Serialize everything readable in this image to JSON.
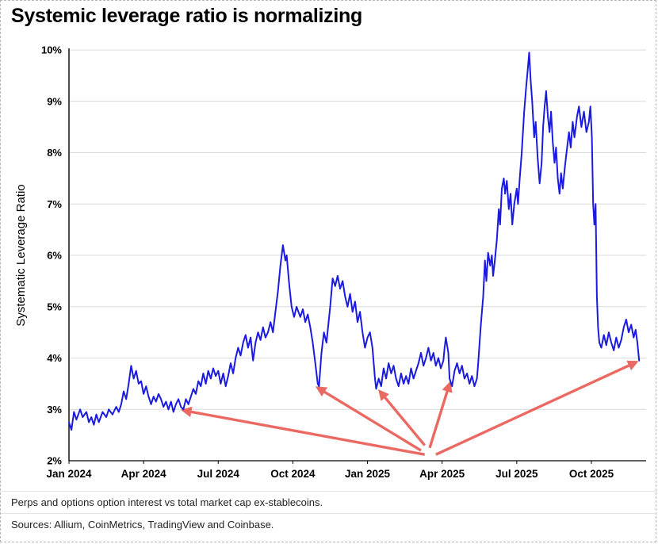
{
  "page": {
    "title": "Systemic leverage ratio is normalizing",
    "footnote_1": "Perps and options option interest vs total market cap ex-stablecoins.",
    "footnote_2": "Sources: Allium, CoinMetrics, TradingView and Coinbase."
  },
  "colors": {
    "line": "#1b1be0",
    "arrow": "#e8564e",
    "grid": "#d9d9d9",
    "axis": "#000000",
    "text": "#111111"
  },
  "chart_data": {
    "type": "line",
    "title": "Systemic leverage ratio is normalizing",
    "xlabel": "",
    "ylabel": "Systematic Leverage Ratio",
    "x_unit": "months since Jan 2024",
    "xlim": [
      0,
      23.2
    ],
    "ylim": [
      2,
      10
    ],
    "yticks": [
      2,
      3,
      4,
      5,
      6,
      7,
      8,
      9,
      10
    ],
    "ytick_labels": [
      "2%",
      "3%",
      "4%",
      "5%",
      "6%",
      "7%",
      "8%",
      "9%",
      "10%"
    ],
    "xticks": [
      0,
      3,
      6,
      9,
      12,
      15,
      18,
      21
    ],
    "xtick_labels": [
      "Jan 2024",
      "Apr 2024",
      "Jul 2024",
      "Oct 2024",
      "Jan 2025",
      "Apr 2025",
      "Jul 2025",
      "Oct 2025"
    ],
    "grid": "horizontal",
    "legend": "none",
    "series": [
      {
        "name": "Systematic Leverage Ratio",
        "color": "#1b1be0",
        "points": [
          [
            0,
            2.75
          ],
          [
            0.1,
            2.6
          ],
          [
            0.2,
            2.95
          ],
          [
            0.3,
            2.8
          ],
          [
            0.45,
            3.0
          ],
          [
            0.55,
            2.85
          ],
          [
            0.7,
            2.95
          ],
          [
            0.8,
            2.75
          ],
          [
            0.9,
            2.85
          ],
          [
            1.0,
            2.7
          ],
          [
            1.1,
            2.9
          ],
          [
            1.2,
            2.75
          ],
          [
            1.35,
            2.95
          ],
          [
            1.5,
            2.85
          ],
          [
            1.6,
            3.0
          ],
          [
            1.75,
            2.9
          ],
          [
            1.9,
            3.05
          ],
          [
            2.0,
            2.95
          ],
          [
            2.1,
            3.1
          ],
          [
            2.2,
            3.35
          ],
          [
            2.3,
            3.2
          ],
          [
            2.4,
            3.5
          ],
          [
            2.5,
            3.85
          ],
          [
            2.6,
            3.6
          ],
          [
            2.7,
            3.75
          ],
          [
            2.8,
            3.5
          ],
          [
            2.9,
            3.55
          ],
          [
            3.0,
            3.3
          ],
          [
            3.1,
            3.45
          ],
          [
            3.2,
            3.25
          ],
          [
            3.3,
            3.1
          ],
          [
            3.4,
            3.25
          ],
          [
            3.5,
            3.15
          ],
          [
            3.6,
            3.3
          ],
          [
            3.7,
            3.2
          ],
          [
            3.8,
            3.05
          ],
          [
            3.9,
            3.15
          ],
          [
            4.0,
            3.0
          ],
          [
            4.1,
            3.15
          ],
          [
            4.2,
            2.95
          ],
          [
            4.3,
            3.1
          ],
          [
            4.4,
            3.2
          ],
          [
            4.5,
            3.05
          ],
          [
            4.6,
            3.0
          ],
          [
            4.7,
            3.2
          ],
          [
            4.8,
            3.1
          ],
          [
            4.9,
            3.25
          ],
          [
            5.0,
            3.4
          ],
          [
            5.1,
            3.3
          ],
          [
            5.2,
            3.55
          ],
          [
            5.3,
            3.45
          ],
          [
            5.4,
            3.7
          ],
          [
            5.5,
            3.5
          ],
          [
            5.6,
            3.75
          ],
          [
            5.7,
            3.6
          ],
          [
            5.8,
            3.8
          ],
          [
            5.9,
            3.65
          ],
          [
            6.0,
            3.75
          ],
          [
            6.1,
            3.5
          ],
          [
            6.2,
            3.7
          ],
          [
            6.3,
            3.45
          ],
          [
            6.4,
            3.65
          ],
          [
            6.5,
            3.9
          ],
          [
            6.6,
            3.7
          ],
          [
            6.7,
            4.0
          ],
          [
            6.8,
            4.2
          ],
          [
            6.9,
            4.05
          ],
          [
            7.0,
            4.3
          ],
          [
            7.1,
            4.45
          ],
          [
            7.2,
            4.2
          ],
          [
            7.3,
            4.4
          ],
          [
            7.4,
            3.95
          ],
          [
            7.5,
            4.3
          ],
          [
            7.6,
            4.5
          ],
          [
            7.7,
            4.35
          ],
          [
            7.8,
            4.6
          ],
          [
            7.9,
            4.4
          ],
          [
            8.0,
            4.5
          ],
          [
            8.1,
            4.7
          ],
          [
            8.2,
            4.5
          ],
          [
            8.3,
            4.9
          ],
          [
            8.4,
            5.3
          ],
          [
            8.5,
            5.8
          ],
          [
            8.6,
            6.2
          ],
          [
            8.7,
            5.9
          ],
          [
            8.75,
            6.0
          ],
          [
            8.85,
            5.45
          ],
          [
            8.95,
            5.0
          ],
          [
            9.05,
            4.8
          ],
          [
            9.15,
            5.0
          ],
          [
            9.3,
            4.8
          ],
          [
            9.4,
            4.95
          ],
          [
            9.5,
            4.7
          ],
          [
            9.6,
            4.85
          ],
          [
            9.7,
            4.6
          ],
          [
            9.8,
            4.3
          ],
          [
            9.9,
            3.9
          ],
          [
            10.0,
            3.5
          ],
          [
            10.05,
            3.45
          ],
          [
            10.15,
            4.1
          ],
          [
            10.25,
            4.5
          ],
          [
            10.35,
            4.3
          ],
          [
            10.5,
            5.0
          ],
          [
            10.6,
            5.55
          ],
          [
            10.7,
            5.4
          ],
          [
            10.8,
            5.6
          ],
          [
            10.9,
            5.35
          ],
          [
            11.0,
            5.5
          ],
          [
            11.1,
            5.2
          ],
          [
            11.2,
            5.0
          ],
          [
            11.3,
            5.25
          ],
          [
            11.4,
            4.9
          ],
          [
            11.5,
            5.1
          ],
          [
            11.6,
            4.7
          ],
          [
            11.7,
            4.9
          ],
          [
            11.8,
            4.5
          ],
          [
            11.9,
            4.2
          ],
          [
            12.0,
            4.4
          ],
          [
            12.1,
            4.5
          ],
          [
            12.2,
            4.2
          ],
          [
            12.3,
            3.6
          ],
          [
            12.35,
            3.4
          ],
          [
            12.45,
            3.6
          ],
          [
            12.55,
            3.45
          ],
          [
            12.65,
            3.8
          ],
          [
            12.75,
            3.6
          ],
          [
            12.85,
            3.9
          ],
          [
            12.95,
            3.7
          ],
          [
            13.05,
            3.85
          ],
          [
            13.15,
            3.6
          ],
          [
            13.25,
            3.45
          ],
          [
            13.35,
            3.7
          ],
          [
            13.45,
            3.5
          ],
          [
            13.55,
            3.65
          ],
          [
            13.65,
            3.5
          ],
          [
            13.75,
            3.8
          ],
          [
            13.85,
            3.6
          ],
          [
            13.95,
            3.75
          ],
          [
            14.05,
            3.9
          ],
          [
            14.15,
            4.1
          ],
          [
            14.25,
            3.85
          ],
          [
            14.35,
            4.0
          ],
          [
            14.45,
            4.2
          ],
          [
            14.55,
            3.95
          ],
          [
            14.65,
            4.1
          ],
          [
            14.75,
            3.85
          ],
          [
            14.85,
            4.0
          ],
          [
            14.95,
            3.8
          ],
          [
            15.05,
            3.95
          ],
          [
            15.1,
            4.2
          ],
          [
            15.15,
            4.4
          ],
          [
            15.25,
            4.1
          ],
          [
            15.3,
            3.6
          ],
          [
            15.4,
            3.45
          ],
          [
            15.5,
            3.75
          ],
          [
            15.6,
            3.9
          ],
          [
            15.7,
            3.7
          ],
          [
            15.8,
            3.85
          ],
          [
            15.9,
            3.6
          ],
          [
            16.0,
            3.7
          ],
          [
            16.1,
            3.5
          ],
          [
            16.2,
            3.65
          ],
          [
            16.3,
            3.45
          ],
          [
            16.4,
            3.6
          ],
          [
            16.45,
            3.9
          ],
          [
            16.55,
            4.6
          ],
          [
            16.65,
            5.2
          ],
          [
            16.72,
            5.9
          ],
          [
            16.78,
            5.5
          ],
          [
            16.85,
            6.05
          ],
          [
            16.93,
            5.8
          ],
          [
            17.0,
            6.0
          ],
          [
            17.05,
            5.6
          ],
          [
            17.12,
            5.9
          ],
          [
            17.2,
            6.3
          ],
          [
            17.28,
            6.9
          ],
          [
            17.33,
            6.6
          ],
          [
            17.4,
            7.3
          ],
          [
            17.48,
            7.5
          ],
          [
            17.53,
            7.2
          ],
          [
            17.6,
            7.45
          ],
          [
            17.68,
            6.9
          ],
          [
            17.75,
            7.2
          ],
          [
            17.82,
            6.6
          ],
          [
            17.9,
            7.0
          ],
          [
            18.0,
            7.3
          ],
          [
            18.05,
            7.0
          ],
          [
            18.12,
            7.5
          ],
          [
            18.2,
            8.0
          ],
          [
            18.3,
            8.8
          ],
          [
            18.38,
            9.3
          ],
          [
            18.44,
            9.6
          ],
          [
            18.5,
            9.95
          ],
          [
            18.56,
            9.4
          ],
          [
            18.62,
            9.0
          ],
          [
            18.7,
            8.3
          ],
          [
            18.76,
            8.6
          ],
          [
            18.84,
            7.9
          ],
          [
            18.92,
            7.4
          ],
          [
            19.0,
            7.8
          ],
          [
            19.06,
            8.5
          ],
          [
            19.12,
            8.9
          ],
          [
            19.18,
            9.2
          ],
          [
            19.25,
            8.7
          ],
          [
            19.32,
            8.4
          ],
          [
            19.38,
            8.8
          ],
          [
            19.45,
            8.2
          ],
          [
            19.52,
            7.8
          ],
          [
            19.58,
            8.1
          ],
          [
            19.65,
            7.5
          ],
          [
            19.72,
            7.2
          ],
          [
            19.78,
            7.6
          ],
          [
            19.85,
            7.3
          ],
          [
            19.93,
            7.7
          ],
          [
            20.0,
            8.0
          ],
          [
            20.1,
            8.4
          ],
          [
            20.17,
            8.1
          ],
          [
            20.25,
            8.6
          ],
          [
            20.32,
            8.3
          ],
          [
            20.42,
            8.7
          ],
          [
            20.5,
            8.9
          ],
          [
            20.6,
            8.5
          ],
          [
            20.7,
            8.8
          ],
          [
            20.8,
            8.4
          ],
          [
            20.9,
            8.6
          ],
          [
            20.96,
            8.9
          ],
          [
            21.02,
            8.3
          ],
          [
            21.07,
            7.0
          ],
          [
            21.12,
            6.6
          ],
          [
            21.17,
            7.0
          ],
          [
            21.22,
            5.2
          ],
          [
            21.27,
            4.6
          ],
          [
            21.32,
            4.3
          ],
          [
            21.4,
            4.2
          ],
          [
            21.5,
            4.45
          ],
          [
            21.6,
            4.25
          ],
          [
            21.7,
            4.5
          ],
          [
            21.8,
            4.3
          ],
          [
            21.9,
            4.15
          ],
          [
            22.0,
            4.4
          ],
          [
            22.1,
            4.2
          ],
          [
            22.2,
            4.35
          ],
          [
            22.3,
            4.6
          ],
          [
            22.4,
            4.75
          ],
          [
            22.5,
            4.5
          ],
          [
            22.6,
            4.65
          ],
          [
            22.7,
            4.4
          ],
          [
            22.78,
            4.55
          ],
          [
            22.85,
            4.3
          ],
          [
            22.92,
            3.95
          ]
        ]
      }
    ],
    "annotations": {
      "arrow_color": "#e8564e",
      "arrows": [
        {
          "from": [
            14.3,
            2.12
          ],
          "to": [
            4.6,
            2.98
          ]
        },
        {
          "from": [
            14.15,
            2.2
          ],
          "to": [
            10.0,
            3.42
          ]
        },
        {
          "from": [
            14.3,
            2.3
          ],
          "to": [
            12.5,
            3.35
          ]
        },
        {
          "from": [
            14.5,
            2.25
          ],
          "to": [
            15.3,
            3.5
          ]
        },
        {
          "from": [
            14.75,
            2.12
          ],
          "to": [
            22.8,
            3.92
          ]
        }
      ]
    }
  }
}
